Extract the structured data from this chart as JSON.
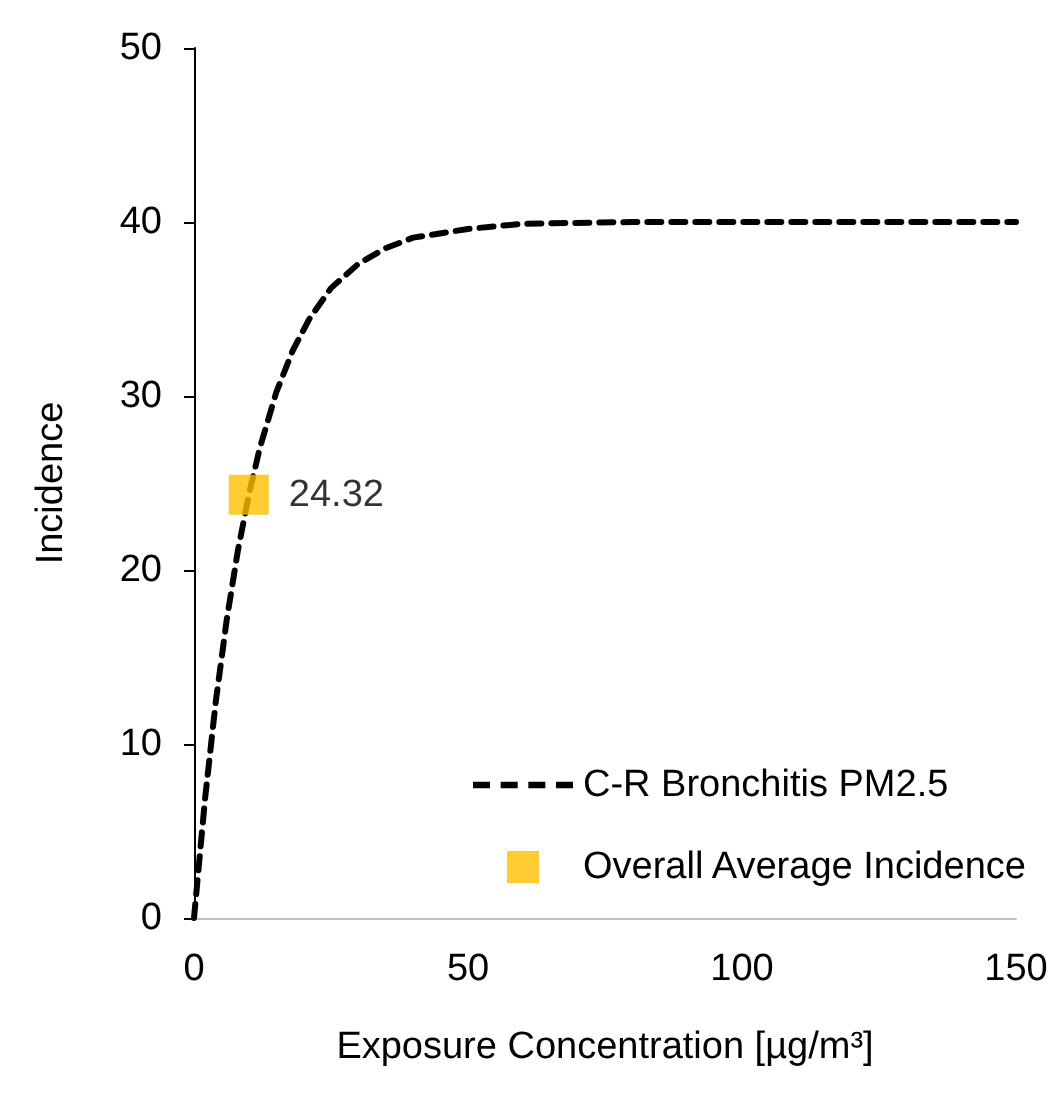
{
  "chart_data": {
    "type": "line",
    "xlabel": "Exposure Concentration [µg/m³]",
    "ylabel": "Incidence",
    "xlim": [
      0,
      150
    ],
    "xticks": [
      0,
      50,
      100,
      150
    ],
    "ylim": [
      0,
      50
    ],
    "yticks": [
      0,
      10,
      20,
      30,
      40,
      50
    ],
    "grid": false,
    "legend": "bottom right",
    "series": [
      {
        "name": "C-R Bronchitis PM2.5",
        "color": "#000000",
        "line_style": "dashed",
        "marker": "none",
        "x": [
          0,
          2,
          4,
          6,
          8,
          10,
          12,
          15,
          18,
          21,
          25,
          30,
          35,
          40,
          50,
          60,
          80,
          100,
          125,
          150
        ],
        "values": [
          0,
          6.8,
          12.5,
          17.2,
          21.1,
          24.3,
          27.0,
          30.2,
          32.6,
          34.4,
          36.2,
          37.6,
          38.5,
          39.1,
          39.6,
          39.9,
          40,
          40,
          40,
          40
        ]
      },
      {
        "name": "Overall Average Incidence",
        "type": "scatter",
        "color": "#ffc000",
        "marker": "square",
        "x": [
          10
        ],
        "values": [
          24.32
        ],
        "value_labels": [
          "24.32"
        ]
      }
    ]
  }
}
